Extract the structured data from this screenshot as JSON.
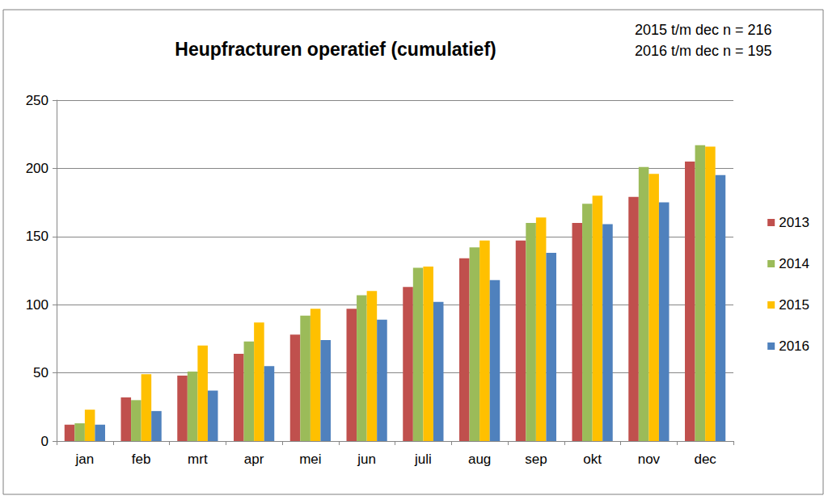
{
  "chart_data": {
    "type": "bar",
    "title": "Heupfracturen operatief (cumulatief)",
    "annotations": [
      "2015 t/m dec n = 216",
      "2016 t/m dec n = 195"
    ],
    "categories": [
      "jan",
      "feb",
      "mrt",
      "apr",
      "mei",
      "jun",
      "juli",
      "aug",
      "sep",
      "okt",
      "nov",
      "dec"
    ],
    "series": [
      {
        "name": "2013",
        "color": "#c0504d",
        "values": [
          12,
          32,
          48,
          64,
          78,
          97,
          113,
          134,
          147,
          160,
          179,
          205
        ]
      },
      {
        "name": "2014",
        "color": "#9bbb59",
        "values": [
          13,
          30,
          51,
          73,
          92,
          107,
          127,
          142,
          160,
          174,
          201,
          217
        ]
      },
      {
        "name": "2015",
        "color": "#ffc000",
        "values": [
          23,
          49,
          70,
          87,
          97,
          110,
          128,
          147,
          164,
          180,
          196,
          216
        ]
      },
      {
        "name": "2016",
        "color": "#4f81bd",
        "values": [
          12,
          22,
          37,
          55,
          74,
          89,
          102,
          118,
          138,
          159,
          175,
          195
        ]
      }
    ],
    "ylim": [
      0,
      250
    ],
    "yticks": [
      0,
      50,
      100,
      150,
      200,
      250
    ],
    "grid": true,
    "legend": "right"
  }
}
